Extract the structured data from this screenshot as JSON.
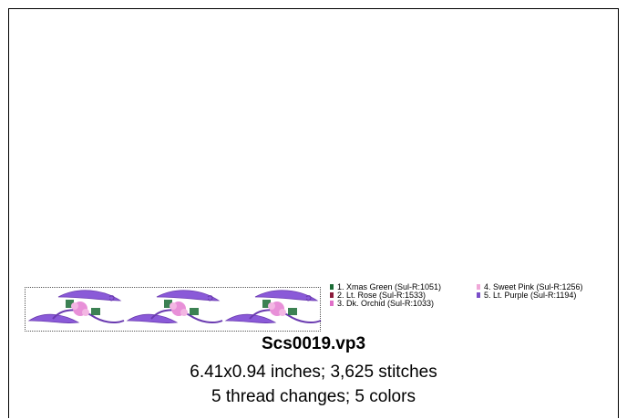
{
  "legend": [
    {
      "label": "1.  Xmas Green (Sul-R:1051)",
      "color": "#1a6b35"
    },
    {
      "label": "2.  Lt. Rose (Sul-R:1533)",
      "color": "#8b1a3a"
    },
    {
      "label": "3.  Dk. Orchid (Sul-R:1033)",
      "color": "#e070c8"
    },
    {
      "label": "4.  Sweet Pink (Sul-R:1256)",
      "color": "#f0a8d8"
    },
    {
      "label": "5.  Lt. Purple (Sul-R:1194)",
      "color": "#7a4ec8"
    }
  ],
  "file": {
    "name": "Scs0019.vp3",
    "dimensions_line": "6.41x0.94 inches; 3,625 stitches",
    "threads_line": "5 thread changes; 5 colors"
  },
  "design": {
    "motif_count": 3,
    "leaf_color": "#8a5ad8",
    "leaf_dark": "#6a3ab0",
    "flower_color": "#e890d8",
    "green_color": "#1a6b35"
  }
}
